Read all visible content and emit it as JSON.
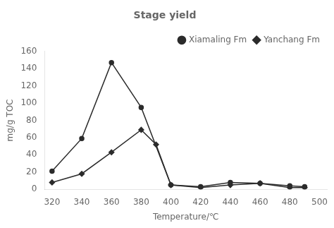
{
  "chart_data": {
    "type": "line",
    "title": "Stage yield",
    "xlabel": "Temperature/℃",
    "ylabel": "mg/g TOC",
    "xlim": [
      315,
      505
    ],
    "ylim": [
      0,
      160
    ],
    "xticks": [
      320,
      340,
      360,
      380,
      400,
      420,
      440,
      460,
      480,
      500
    ],
    "yticks": [
      0,
      20,
      40,
      60,
      80,
      100,
      120,
      140,
      160
    ],
    "grid": false,
    "legend": "upper right",
    "series": [
      {
        "name": "Xiamaling Fm",
        "color": "#2b2b2b",
        "marker": "circle",
        "x": [
          320,
          340,
          360,
          380,
          400,
          420,
          440,
          460,
          480,
          490
        ],
        "values": [
          21,
          59,
          147,
          95,
          5,
          3,
          8,
          7,
          4,
          3
        ]
      },
      {
        "name": "Yanchang Fm",
        "color": "#2b2b2b",
        "marker": "diamond",
        "x": [
          320,
          340,
          360,
          380,
          390,
          400,
          420,
          440,
          460,
          480,
          490
        ],
        "values": [
          8,
          18,
          43,
          69,
          52,
          5,
          2,
          5,
          7,
          2,
          2
        ]
      }
    ]
  }
}
